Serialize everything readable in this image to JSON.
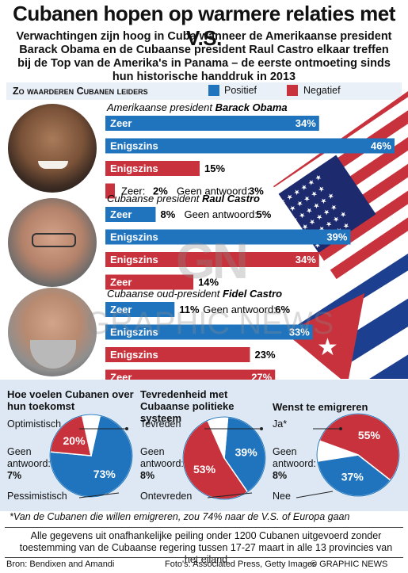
{
  "title": "Cubanen hopen op warmere relaties met V.S.",
  "subtitle": "Verwachtingen zijn hoog in Cuba wanneer de Amerikaanse president Barack Obama en de Cubaanse president Raul Castro elkaar treffen bij de Top van de Amerika's in Panama – de eerste ontmoeting sinds hun historische handdruk in 2013",
  "section_heading": "Zo waarderen Cubanen leiders",
  "colors": {
    "positive": "#1f74bd",
    "negative": "#c8323c",
    "panel": "#dde8f4"
  },
  "legend": {
    "positive": "Positief",
    "negative": "Negatief"
  },
  "icons": [
    "barack-obama-photo",
    "raul-castro-photo",
    "fidel-castro-photo",
    "us-flag",
    "cuban-flag"
  ],
  "chart_data": [
    {
      "type": "bar",
      "groups": [
        {
          "prefix": "Amerikaanse president ",
          "name": "Barack Obama",
          "bars": [
            {
              "label": "Zeer",
              "sentiment": "positive",
              "value": 34
            },
            {
              "label": "Enigszins",
              "sentiment": "positive",
              "value": 46
            },
            {
              "label": "Enigszins",
              "sentiment": "negative",
              "value": 15
            },
            {
              "label": "Zeer",
              "sentiment": "negative",
              "value": 2
            }
          ],
          "no_answer": 3
        },
        {
          "prefix": "Cubaanse president ",
          "name": "Raul Castro",
          "bars": [
            {
              "label": "Zeer",
              "sentiment": "positive",
              "value": 8
            },
            {
              "label": "Enigszins",
              "sentiment": "positive",
              "value": 39
            },
            {
              "label": "Enigszins",
              "sentiment": "negative",
              "value": 34
            },
            {
              "label": "Zeer",
              "sentiment": "negative",
              "value": 14
            }
          ],
          "no_answer": 5
        },
        {
          "prefix": "Cubaanse oud-president ",
          "name": "Fidel Castro",
          "bars": [
            {
              "label": "Zeer",
              "sentiment": "positive",
              "value": 11
            },
            {
              "label": "Enigszins",
              "sentiment": "positive",
              "value": 33
            },
            {
              "label": "Enigszins",
              "sentiment": "negative",
              "value": 23
            },
            {
              "label": "Zeer",
              "sentiment": "negative",
              "value": 27
            }
          ],
          "no_answer": 6
        }
      ],
      "no_answer_label": "Geen antwoord:"
    },
    {
      "type": "pie",
      "title": "Hoe voelen Cubanen over hun toekomst",
      "slices": [
        {
          "label": "Optimistisch",
          "value": 73,
          "color": "#1f74bd"
        },
        {
          "label": "Pessimistisch",
          "value": 20,
          "color": "#c8323c"
        },
        {
          "label": "Geen antwoord:",
          "value": 7,
          "color": "#ffffff"
        }
      ]
    },
    {
      "type": "pie",
      "title": "Tevredenheid met Cubaanse politieke systeem",
      "slices": [
        {
          "label": "Tevreden",
          "value": 39,
          "color": "#1f74bd"
        },
        {
          "label": "Ontevreden",
          "value": 53,
          "color": "#c8323c"
        },
        {
          "label": "Geen antwoord:",
          "value": 8,
          "color": "#ffffff"
        }
      ]
    },
    {
      "type": "pie",
      "title": "Wenst te emigreren",
      "slices": [
        {
          "label": "Ja*",
          "value": 55,
          "color": "#c8323c"
        },
        {
          "label": "Nee",
          "value": 37,
          "color": "#1f74bd"
        },
        {
          "label": "Geen antwoord:",
          "value": 8,
          "color": "#ffffff"
        }
      ]
    }
  ],
  "pies_text": {
    "p1": {
      "t": "Hoe voelen Cubanen over hun toekomst",
      "a": "Optimistisch",
      "b": "Pessimistisch",
      "n1": "Geen",
      "n2": "antwoord:",
      "n3": "7%"
    },
    "p2": {
      "t": "Tevredenheid met Cubaanse politieke systeem",
      "a": "Tevreden",
      "b": "Ontevreden",
      "n1": "Geen",
      "n2": "antwoord:",
      "n3": "8%"
    },
    "p3": {
      "t": "Wenst te emigreren",
      "a": "Ja*",
      "b": "Nee",
      "n1": "Geen",
      "n2": "antwoord:",
      "n3": "8%"
    }
  },
  "footnote": "*Van de Cubanen die willen emigreren, zou 74% naar de V.S. of Europa gaan",
  "note": "Alle gegevens uit onafhankelijke peiling onder 1200 Cubanen uitgevoerd zonder toestemming van de Cubaanse regering tussen 17-27 maart in alle 13 provincies van het eiland",
  "source": "Bron: Bendixen and Amandi",
  "photos": "Foto's: Associated Press, Getty Images",
  "brand": "© GRAPHIC NEWS",
  "watermark": {
    "logo": "GN",
    "text": "GRAPHIC NEWS"
  }
}
